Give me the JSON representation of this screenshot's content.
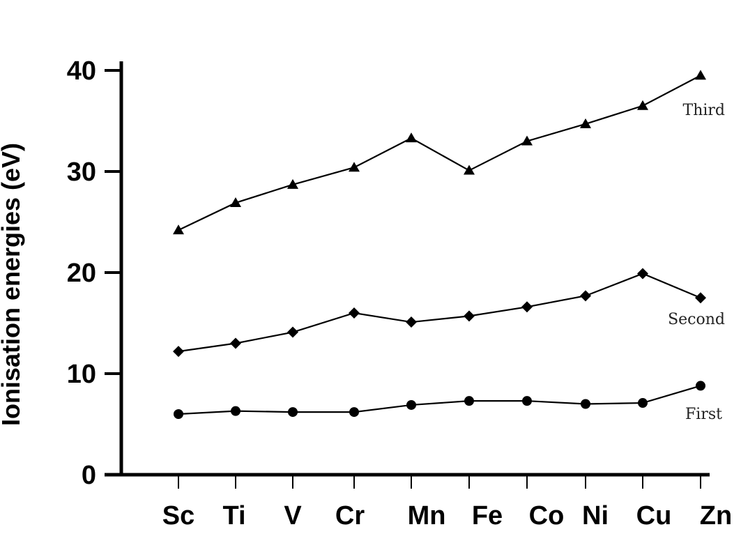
{
  "chart_data": {
    "type": "line",
    "ylabel": "Ionisation energies (eV)",
    "xlabel": "",
    "categories": [
      "Sc",
      "Ti",
      "V",
      "Cr",
      "Mn",
      "Fe",
      "Co",
      "Ni",
      "Cu",
      "Zn"
    ],
    "ylim": [
      0,
      40
    ],
    "yticks": [
      0,
      10,
      20,
      30,
      40
    ],
    "grid": false,
    "series": [
      {
        "name": "Third",
        "marker": "triangle",
        "values": [
          24.2,
          26.9,
          28.7,
          30.4,
          33.3,
          30.1,
          33.0,
          34.7,
          36.5,
          39.5
        ]
      },
      {
        "name": "Second",
        "marker": "diamond",
        "values": [
          12.2,
          13.0,
          14.1,
          16.0,
          15.1,
          15.7,
          16.6,
          17.7,
          19.9,
          17.5
        ]
      },
      {
        "name": "First",
        "marker": "circle",
        "values": [
          6.0,
          6.3,
          6.2,
          6.2,
          6.9,
          7.3,
          7.3,
          7.0,
          7.1,
          8.8
        ]
      }
    ],
    "colors": {
      "line": "#000000",
      "axis": "#000000"
    }
  }
}
